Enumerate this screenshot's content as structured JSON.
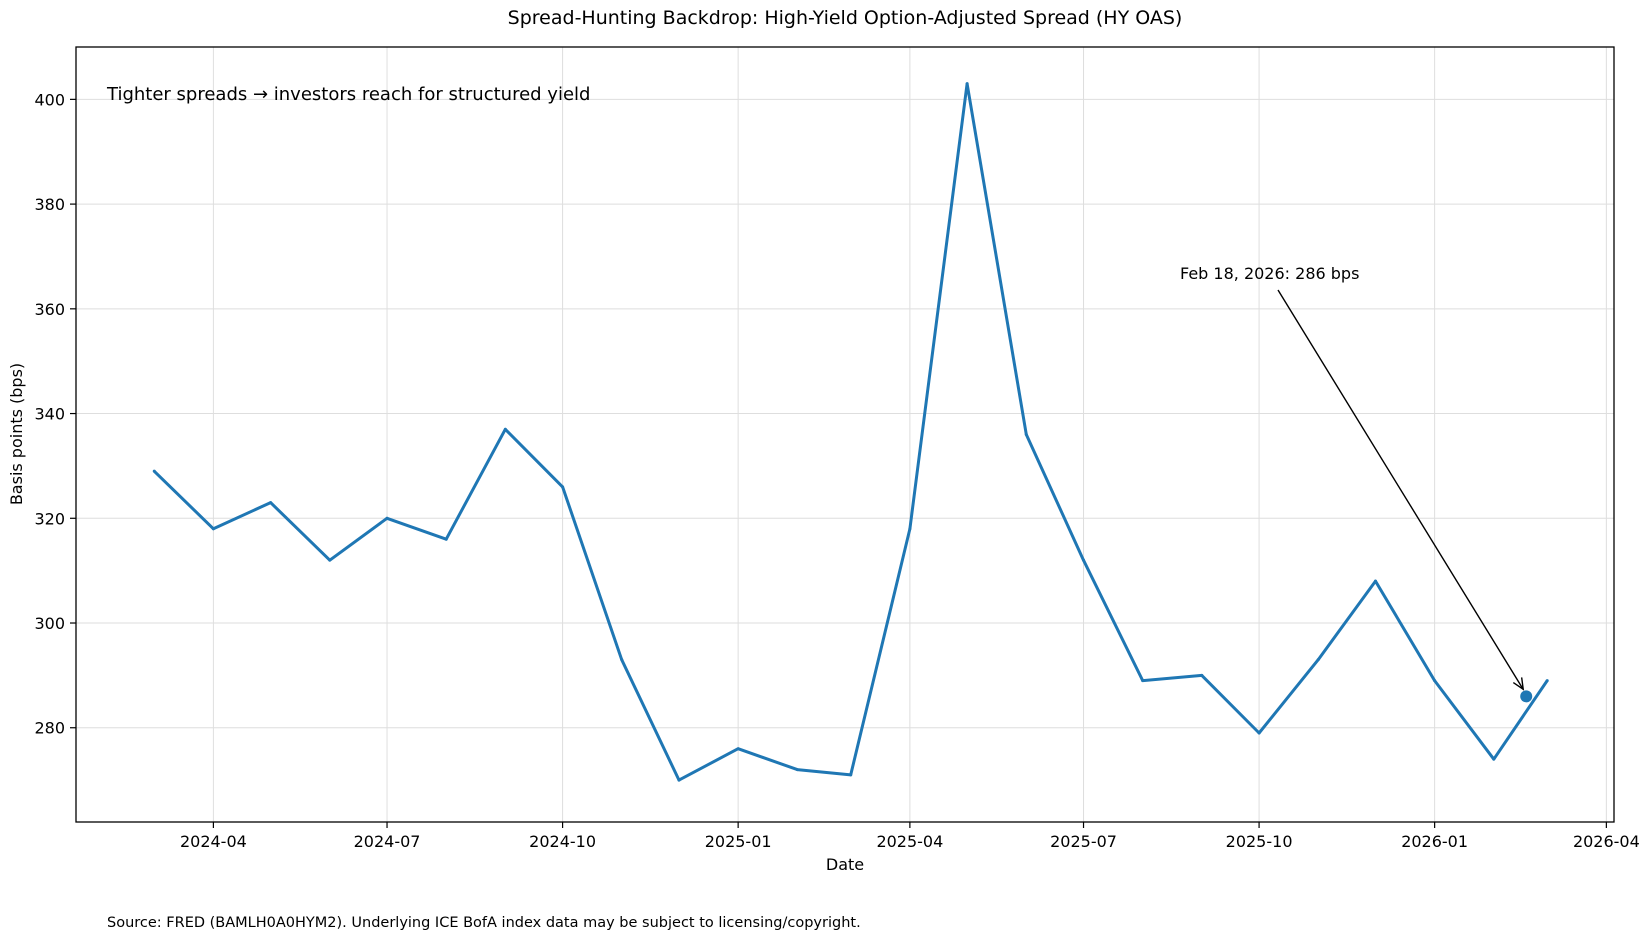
{
  "chart_data": {
    "type": "line",
    "title": "Spread-Hunting Backdrop: High-Yield Option-Adjusted Spread (HY OAS)",
    "xlabel": "Date",
    "ylabel": "Basis points (bps)",
    "x_range": [
      "2024-01-20",
      "2026-04-05"
    ],
    "ylim": [
      262,
      410
    ],
    "grid": true,
    "x_ticks": [
      "2024-04",
      "2024-07",
      "2024-10",
      "2025-01",
      "2025-04",
      "2025-07",
      "2025-10",
      "2026-01",
      "2026-04"
    ],
    "y_ticks": [
      280,
      300,
      320,
      340,
      360,
      380,
      400
    ],
    "series": [
      {
        "color": "#1f77b4",
        "points": [
          {
            "date": "2024-03-01",
            "value": 329
          },
          {
            "date": "2024-04-01",
            "value": 318
          },
          {
            "date": "2024-05-01",
            "value": 323
          },
          {
            "date": "2024-06-01",
            "value": 312
          },
          {
            "date": "2024-07-01",
            "value": 320
          },
          {
            "date": "2024-08-01",
            "value": 316
          },
          {
            "date": "2024-09-01",
            "value": 337
          },
          {
            "date": "2024-10-01",
            "value": 326
          },
          {
            "date": "2024-11-01",
            "value": 293
          },
          {
            "date": "2024-12-01",
            "value": 270
          },
          {
            "date": "2025-01-01",
            "value": 276
          },
          {
            "date": "2025-02-01",
            "value": 272
          },
          {
            "date": "2025-03-01",
            "value": 271
          },
          {
            "date": "2025-04-01",
            "value": 318
          },
          {
            "date": "2025-05-01",
            "value": 403
          },
          {
            "date": "2025-06-01",
            "value": 336
          },
          {
            "date": "2025-07-01",
            "value": 312
          },
          {
            "date": "2025-08-01",
            "value": 289
          },
          {
            "date": "2025-09-01",
            "value": 290
          },
          {
            "date": "2025-10-01",
            "value": 279
          },
          {
            "date": "2025-11-01",
            "value": 293
          },
          {
            "date": "2025-12-01",
            "value": 308
          },
          {
            "date": "2026-01-01",
            "value": 289
          },
          {
            "date": "2026-02-01",
            "value": 274
          },
          {
            "date": "2026-03-01",
            "value": 289
          }
        ]
      }
    ],
    "highlight_point": {
      "date": "2026-02-18",
      "value": 286
    },
    "annotation": "Feb 18, 2026: 286 bps",
    "note": "Tighter spreads → investors reach for structured yield",
    "source": "Source: FRED (BAMLH0A0HYM2). Underlying ICE BofA index data may be subject to licensing/copyright."
  }
}
